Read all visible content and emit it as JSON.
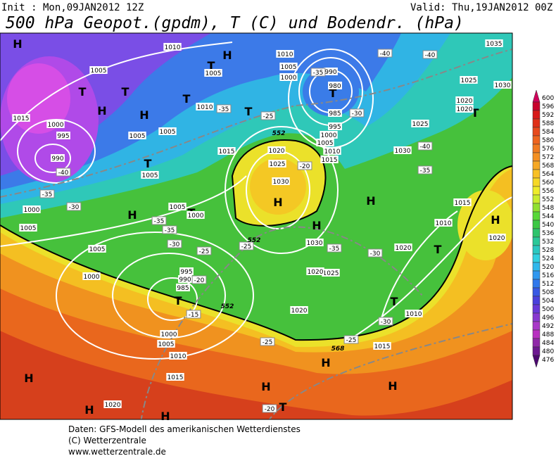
{
  "header": {
    "init": "Init : Mon,09JAN2012 12Z",
    "valid": "Valid: Thu,19JAN2012 00Z",
    "title": "500 hPa Geopot.(gpdm), T (C) und Bodendr. (hPa)"
  },
  "map": {
    "centers": [
      "H",
      "H",
      "H",
      "H",
      "H",
      "H",
      "H",
      "H",
      "H",
      "H",
      "H",
      "H",
      "H",
      "H",
      "H",
      "T",
      "T",
      "T",
      "T",
      "T",
      "T",
      "T",
      "T",
      "T",
      "T",
      "T",
      "T",
      "T"
    ],
    "isobar_labels": [
      "1010",
      "1005",
      "1005",
      "1015",
      "1000",
      "995",
      "990",
      "1005",
      "1005",
      "1005",
      "1010",
      "1015",
      "1010",
      "1005",
      "1000",
      "990",
      "980",
      "985",
      "995",
      "1000",
      "1005",
      "1010",
      "1015",
      "1020",
      "1025",
      "1030",
      "1025",
      "1030",
      "1035",
      "1025",
      "1030",
      "1020",
      "1020",
      "1015",
      "1010",
      "1020",
      "1020",
      "1030",
      "1025",
      "1020",
      "1020",
      "1015",
      "1010",
      "1005",
      "1000",
      "1000",
      "1005",
      "1005",
      "1000",
      "995",
      "990",
      "985",
      "1000",
      "1005",
      "1010",
      "1015",
      "1020"
    ],
    "isotherm_labels": [
      "-40",
      "-40",
      "-35",
      "-30",
      "-35",
      "-25",
      "-40",
      "-35",
      "-30",
      "-35",
      "-35",
      "-30",
      "-25",
      "-25",
      "-20",
      "-15",
      "-20",
      "-35",
      "-40",
      "-35",
      "-30",
      "-30",
      "-25",
      "-25",
      "-20"
    ],
    "height_labels": [
      "552",
      "552",
      "552",
      "568"
    ]
  },
  "legend": {
    "values": [
      600,
      596,
      592,
      588,
      584,
      580,
      576,
      572,
      568,
      564,
      560,
      556,
      552,
      548,
      544,
      540,
      536,
      532,
      528,
      524,
      520,
      516,
      512,
      508,
      504,
      500,
      496,
      492,
      488,
      484,
      480,
      476
    ]
  },
  "footer": {
    "line1": "Daten: GFS-Modell des amerikanischen Wetterdienstes",
    "line2": "(C) Wetterzentrale",
    "line3": "www.wetterzentrale.de"
  }
}
